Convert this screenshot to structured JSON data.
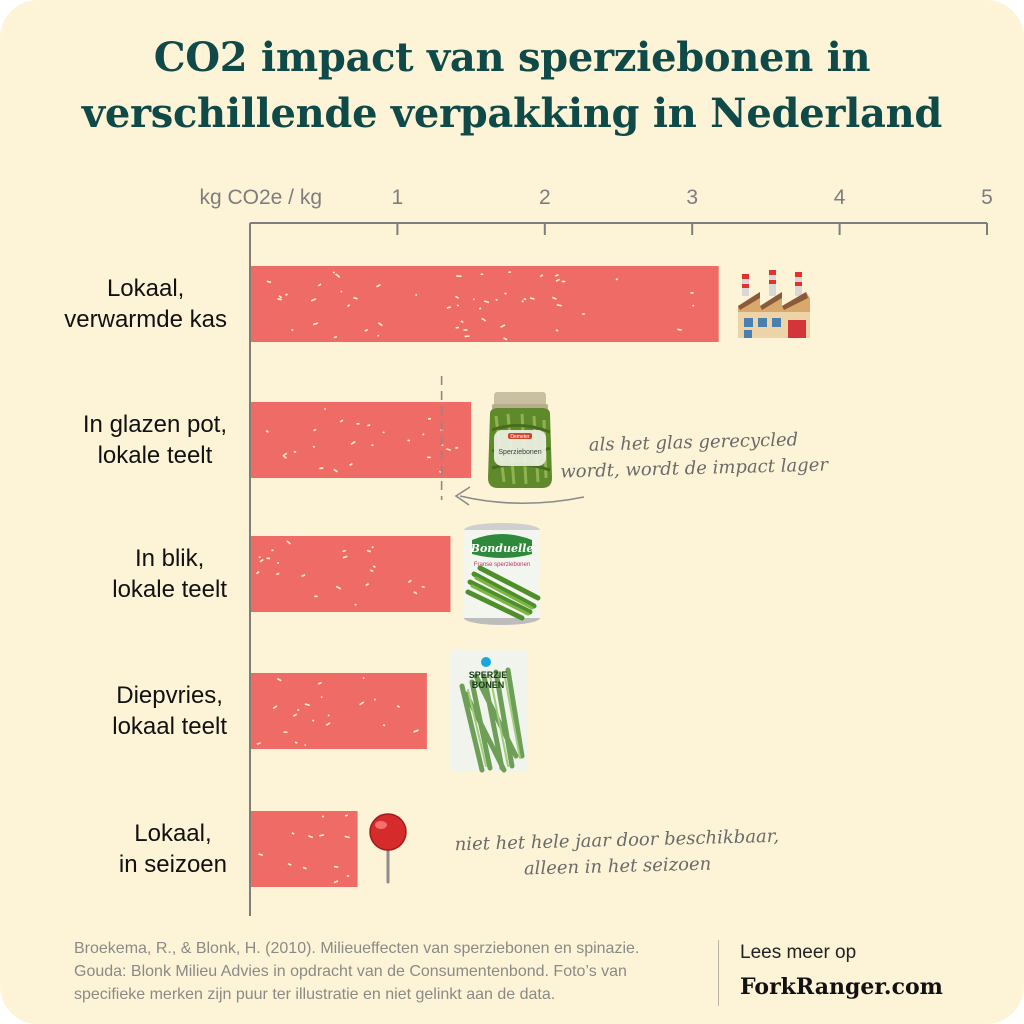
{
  "title": {
    "line1": "CO2 impact van sperziebonen in",
    "line2": "verschillende verpakking in Nederland"
  },
  "chart_data": {
    "type": "bar",
    "orientation": "horizontal",
    "axis_label": "kg CO2e / kg",
    "xlim": [
      0,
      5
    ],
    "ticks": [
      1,
      2,
      3,
      4,
      5
    ],
    "categories": [
      [
        "Lokaal,",
        "verwarmde kas"
      ],
      [
        "In glazen pot,",
        "lokale teelt"
      ],
      [
        "In blik,",
        "lokale teelt"
      ],
      [
        "Diepvries,",
        "lokaal teelt"
      ],
      [
        "Lokaal,",
        "in seizoen"
      ]
    ],
    "values": [
      3.18,
      1.5,
      1.36,
      1.2,
      0.73
    ],
    "recycled_glass_marker": 1.3,
    "bar_color": "#ee6b66",
    "axis_color": "#7d7d7d",
    "text_color": "#0f4a49"
  },
  "annotations": {
    "glass": [
      "als het glas gerecycled",
      "wordt, wordt de impact lager"
    ],
    "season": [
      "niet het hele jaar door beschikbaar,",
      "alleen in het seizoen"
    ]
  },
  "product_images": {
    "jar_brand": "Demeter",
    "jar_label": "Sperziebonen",
    "can_brand": "Bonduelle",
    "can_label": "Franse sperziebonen",
    "bag_label": [
      "SPERZIE",
      "BONEN"
    ]
  },
  "icons": [
    "factory-icon",
    "pushpin-icon",
    "glass-jar-image",
    "can-image",
    "frozen-bag-image"
  ],
  "footer": {
    "source_line1": "Broekema, R., & Blonk, H. (2010). Milieueffecten van sperziebonen en spinazie.",
    "source_line2": "Gouda: Blonk Milieu Advies in opdracht van de Consumentenbond. Foto’s van",
    "source_line3": "specifieke merken zijn puur ter illustratie en niet gelinkt aan de data.",
    "lees_meer": "Lees meer op",
    "site": "ForkRanger.com"
  }
}
